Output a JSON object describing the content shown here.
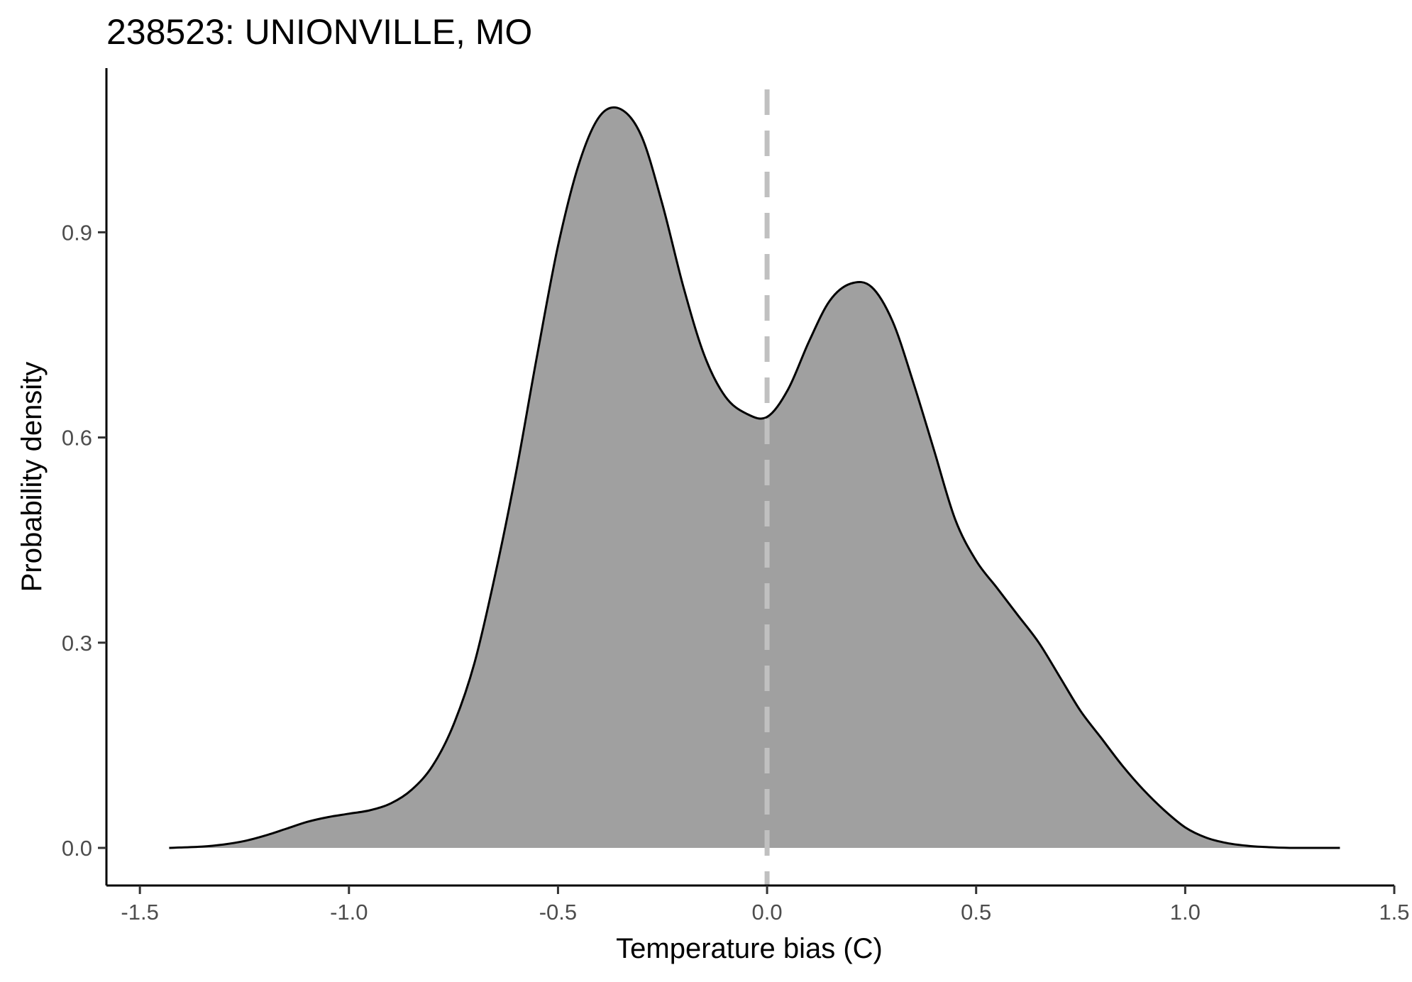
{
  "chart_data": {
    "type": "area",
    "title": "238523: UNIONVILLE, MO",
    "xlabel": "Temperature bias (C)",
    "ylabel": "Probability density",
    "xlim": [
      -1.58,
      1.5
    ],
    "ylim": [
      -0.055,
      1.14
    ],
    "x_ticks": [
      -1.5,
      -1.0,
      -0.5,
      0.0,
      0.5,
      1.0,
      1.5
    ],
    "x_tick_labels": [
      "-1.5",
      "-1.0",
      "-0.5",
      "0.0",
      "0.5",
      "1.0",
      "1.5"
    ],
    "y_ticks": [
      0.0,
      0.3,
      0.6,
      0.9
    ],
    "y_tick_labels": [
      "0.0",
      "0.3",
      "0.6",
      "0.9"
    ],
    "grid": false,
    "legend": "none",
    "reference_line": {
      "x": 0.0,
      "style": "dashed",
      "color": "#c0c0c0"
    },
    "fill_color": "#a0a0a0",
    "line_color": "#000000",
    "series": [
      {
        "x": [
          -1.43,
          -1.35,
          -1.3,
          -1.25,
          -1.2,
          -1.15,
          -1.1,
          -1.05,
          -1.0,
          -0.95,
          -0.9,
          -0.85,
          -0.8,
          -0.75,
          -0.7,
          -0.65,
          -0.6,
          -0.55,
          -0.5,
          -0.45,
          -0.4,
          -0.35,
          -0.3,
          -0.25,
          -0.2,
          -0.15,
          -0.1,
          -0.05,
          0.0,
          0.05,
          0.1,
          0.15,
          0.2,
          0.25,
          0.3,
          0.35,
          0.4,
          0.45,
          0.5,
          0.55,
          0.6,
          0.65,
          0.7,
          0.75,
          0.8,
          0.85,
          0.9,
          0.95,
          1.0,
          1.05,
          1.1,
          1.15,
          1.2,
          1.25,
          1.3,
          1.37
        ],
        "y": [
          0.0,
          0.002,
          0.005,
          0.01,
          0.018,
          0.028,
          0.038,
          0.045,
          0.05,
          0.055,
          0.065,
          0.085,
          0.12,
          0.18,
          0.27,
          0.4,
          0.55,
          0.72,
          0.88,
          1.0,
          1.07,
          1.08,
          1.04,
          0.94,
          0.82,
          0.72,
          0.66,
          0.635,
          0.63,
          0.67,
          0.74,
          0.8,
          0.825,
          0.82,
          0.77,
          0.68,
          0.58,
          0.48,
          0.42,
          0.38,
          0.34,
          0.3,
          0.25,
          0.2,
          0.16,
          0.12,
          0.085,
          0.055,
          0.03,
          0.015,
          0.007,
          0.003,
          0.001,
          0.0,
          0.0,
          0.0
        ]
      }
    ]
  }
}
